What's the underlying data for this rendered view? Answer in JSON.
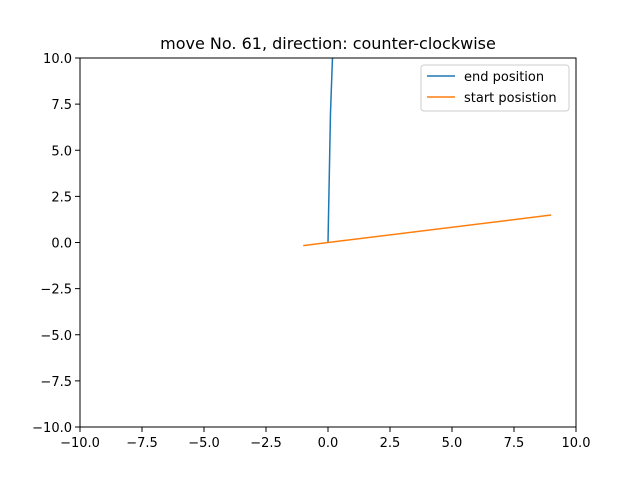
{
  "chart_data": {
    "type": "line",
    "title": "move No. 61, direction: counter-clockwise",
    "xlabel": "",
    "ylabel": "",
    "xlim": [
      -10,
      10
    ],
    "ylim": [
      -10,
      10
    ],
    "xticks": [
      -10,
      -7.5,
      -5,
      -2.5,
      0,
      2.5,
      5,
      7.5,
      10
    ],
    "yticks": [
      -10,
      -7.5,
      -5,
      -2.5,
      0,
      2.5,
      5,
      7.5,
      10
    ],
    "xtick_labels": [
      "−10.0",
      "−7.5",
      "−5.0",
      "−2.5",
      "0.0",
      "2.5",
      "5.0",
      "7.5",
      "10.0"
    ],
    "ytick_labels": [
      "−10.0",
      "−7.5",
      "−5.0",
      "−2.5",
      "0.0",
      "2.5",
      "5.0",
      "7.5",
      "10.0"
    ],
    "grid": false,
    "legend_position": "top-right",
    "series": [
      {
        "name": "end position",
        "color": "#1f77b4",
        "x": [
          0.0,
          0.1,
          0.18
        ],
        "y": [
          0.0,
          7.0,
          10.0
        ]
      },
      {
        "name": "start posistion",
        "color": "#ff7f0e",
        "x": [
          -1.0,
          0.0,
          9.0
        ],
        "y": [
          -0.17,
          0.0,
          1.49
        ]
      }
    ]
  }
}
